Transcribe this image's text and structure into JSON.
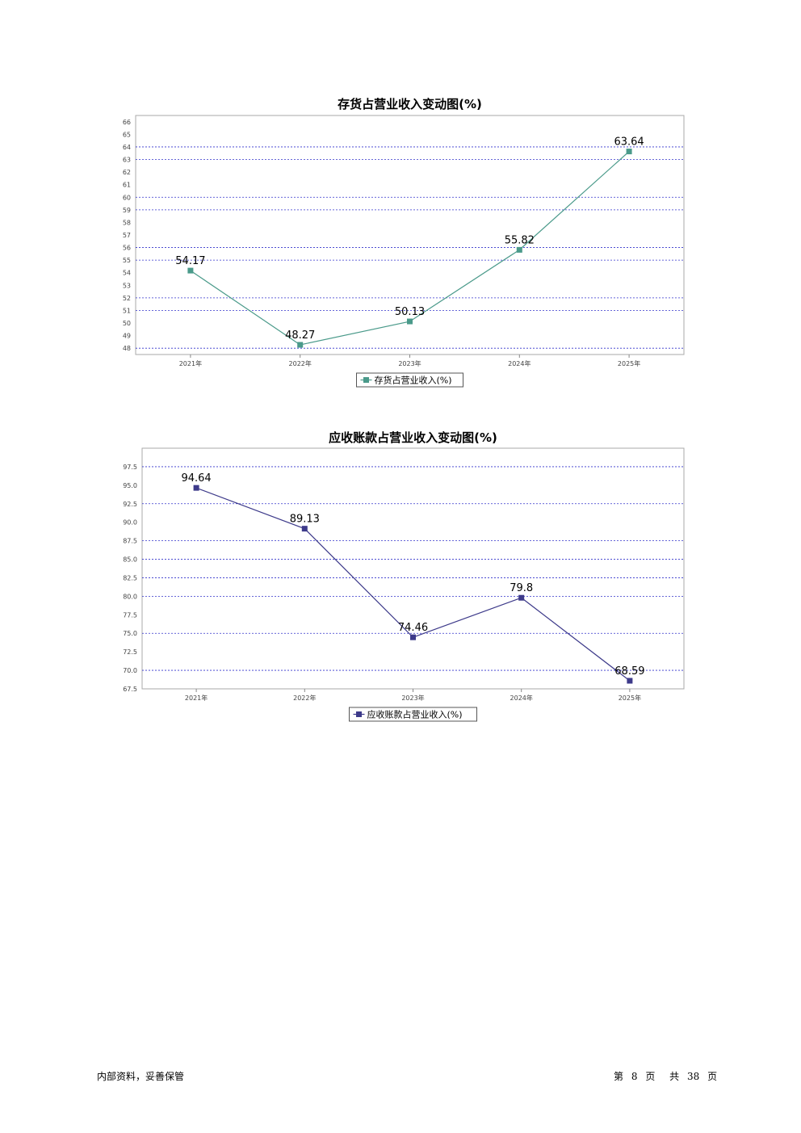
{
  "chart_data": [
    {
      "type": "line",
      "title": "存货占营业收入变动图(%)",
      "categories": [
        "2021年",
        "2022年",
        "2023年",
        "2024年",
        "2025年"
      ],
      "series": [
        {
          "name": "存货占营业收入(%)",
          "values": [
            54.17,
            48.27,
            50.13,
            55.82,
            63.64
          ],
          "color": "#4a9a8a"
        }
      ],
      "ylim": [
        47.5,
        66.5
      ],
      "yticks": [
        "66",
        "65",
        "64",
        "63",
        "62",
        "61",
        "60",
        "59",
        "58",
        "57",
        "56",
        "55",
        "54",
        "53",
        "52",
        "51",
        "50",
        "49",
        "48"
      ],
      "ytick_values": [
        66,
        65,
        64,
        63,
        62,
        61,
        60,
        59,
        58,
        57,
        56,
        55,
        54,
        53,
        52,
        51,
        50,
        49,
        48
      ],
      "gridlines": [
        64,
        63,
        60,
        59,
        56,
        55,
        52,
        51,
        48
      ],
      "grid_color": "#3333cc",
      "legend": "bottom-center"
    },
    {
      "type": "line",
      "title": "应收账款占营业收入变动图(%)",
      "categories": [
        "2021年",
        "2022年",
        "2023年",
        "2024年",
        "2025年"
      ],
      "series": [
        {
          "name": "应收账款占营业收入(%)",
          "values": [
            94.64,
            89.13,
            74.46,
            79.8,
            68.59
          ],
          "color": "#3d3a8a"
        }
      ],
      "ylim": [
        67.5,
        100.0
      ],
      "yticks": [
        "97.5",
        "95.0",
        "92.5",
        "90.0",
        "87.5",
        "85.0",
        "82.5",
        "80.0",
        "77.5",
        "75.0",
        "72.5",
        "70.0",
        "67.5"
      ],
      "ytick_values": [
        97.5,
        95.0,
        92.5,
        90.0,
        87.5,
        85.0,
        82.5,
        80.0,
        77.5,
        75.0,
        72.5,
        70.0,
        67.5
      ],
      "gridlines": [
        97.5,
        92.5,
        87.5,
        85.0,
        82.5,
        80.0,
        75.0,
        70.0
      ],
      "grid_color": "#3333cc",
      "legend": "bottom-center"
    }
  ],
  "footer": {
    "left": "内部资料，妥善保管",
    "page_prefix": "第",
    "page_current": "8",
    "page_mid": "页",
    "page_total_prefix": "共",
    "page_total": "38",
    "page_suffix": "页"
  }
}
